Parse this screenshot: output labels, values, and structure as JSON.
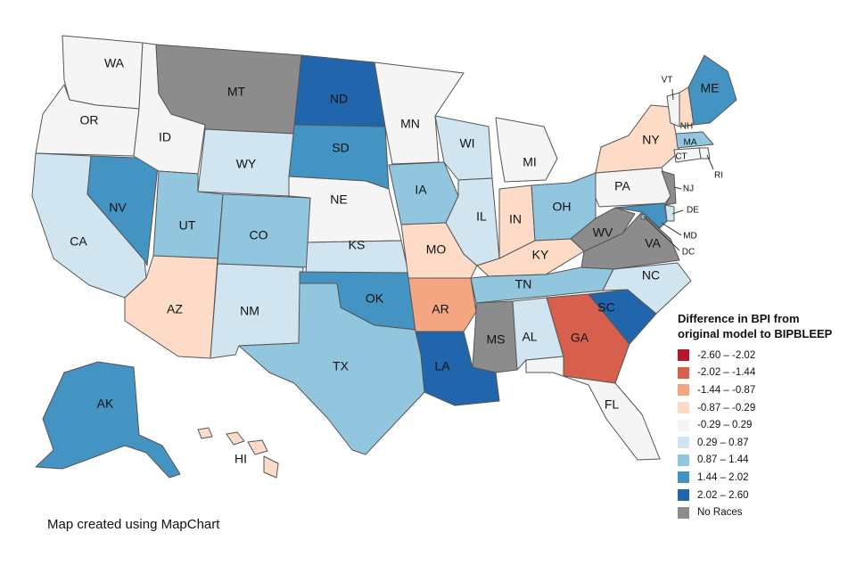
{
  "legend": {
    "title_line1": "Difference in BPI from",
    "title_line2": "original model to BIPBLEEP",
    "items": [
      {
        "label": "-2.60 – -2.02",
        "color": "#b2182b"
      },
      {
        "label": "-2.02 – -1.44",
        "color": "#d6604d"
      },
      {
        "label": "-1.44 – -0.87",
        "color": "#f4a582"
      },
      {
        "label": "-0.87 – -0.29",
        "color": "#fddbc7"
      },
      {
        "label": "-0.29 – 0.29",
        "color": "#f5f5f5"
      },
      {
        "label": "0.29 – 0.87",
        "color": "#d1e5f0"
      },
      {
        "label": "0.87 – 1.44",
        "color": "#92c5de"
      },
      {
        "label": "1.44 – 2.02",
        "color": "#4393c3"
      },
      {
        "label": "2.02 – 2.60",
        "color": "#2166ac"
      },
      {
        "label": "No Races",
        "color": "#8c8c8c"
      }
    ]
  },
  "credit": "Map created using MapChart",
  "states": {
    "WA": {
      "label": "WA",
      "bin": 4
    },
    "OR": {
      "label": "OR",
      "bin": 4
    },
    "CA": {
      "label": "CA",
      "bin": 5
    },
    "NV": {
      "label": "NV",
      "bin": 7
    },
    "ID": {
      "label": "ID",
      "bin": 4
    },
    "MT": {
      "label": "MT",
      "bin": 9
    },
    "WY": {
      "label": "WY",
      "bin": 5
    },
    "UT": {
      "label": "UT",
      "bin": 6
    },
    "AZ": {
      "label": "AZ",
      "bin": 3
    },
    "CO": {
      "label": "CO",
      "bin": 6
    },
    "NM": {
      "label": "NM",
      "bin": 5
    },
    "ND": {
      "label": "ND",
      "bin": 8
    },
    "SD": {
      "label": "SD",
      "bin": 7
    },
    "NE": {
      "label": "NE",
      "bin": 4
    },
    "KS": {
      "label": "KS",
      "bin": 5
    },
    "OK": {
      "label": "OK",
      "bin": 7
    },
    "TX": {
      "label": "TX",
      "bin": 6
    },
    "MN": {
      "label": "MN",
      "bin": 4
    },
    "IA": {
      "label": "IA",
      "bin": 6
    },
    "MO": {
      "label": "MO",
      "bin": 3
    },
    "AR": {
      "label": "AR",
      "bin": 2
    },
    "LA": {
      "label": "LA",
      "bin": 8
    },
    "WI": {
      "label": "WI",
      "bin": 5
    },
    "IL": {
      "label": "IL",
      "bin": 5
    },
    "MI": {
      "label": "MI",
      "bin": 4
    },
    "IN": {
      "label": "IN",
      "bin": 3
    },
    "OH": {
      "label": "OH",
      "bin": 6
    },
    "KY": {
      "label": "KY",
      "bin": 3
    },
    "TN": {
      "label": "TN",
      "bin": 6
    },
    "MS": {
      "label": "MS",
      "bin": 9
    },
    "AL": {
      "label": "AL",
      "bin": 5
    },
    "GA": {
      "label": "GA",
      "bin": 1
    },
    "FL": {
      "label": "FL",
      "bin": 4
    },
    "SC": {
      "label": "SC",
      "bin": 8
    },
    "NC": {
      "label": "NC",
      "bin": 5
    },
    "VA": {
      "label": "VA",
      "bin": 9
    },
    "WV": {
      "label": "WV",
      "bin": 9
    },
    "PA": {
      "label": "PA",
      "bin": 4
    },
    "NY": {
      "label": "NY",
      "bin": 3
    },
    "VT": {
      "label": "VT",
      "bin": 4
    },
    "NH": {
      "label": "NH",
      "bin": 3
    },
    "ME": {
      "label": "ME",
      "bin": 7
    },
    "MA": {
      "label": "MA",
      "bin": 6
    },
    "RI": {
      "label": "RI",
      "bin": 4
    },
    "CT": {
      "label": "CT",
      "bin": 4
    },
    "NJ": {
      "label": "NJ",
      "bin": 9
    },
    "DE": {
      "label": "DE",
      "bin": 5
    },
    "MD": {
      "label": "MD",
      "bin": 7
    },
    "DC": {
      "label": "DC",
      "bin": 6
    },
    "AK": {
      "label": "AK",
      "bin": 7
    },
    "HI": {
      "label": "HI",
      "bin": 3
    }
  }
}
